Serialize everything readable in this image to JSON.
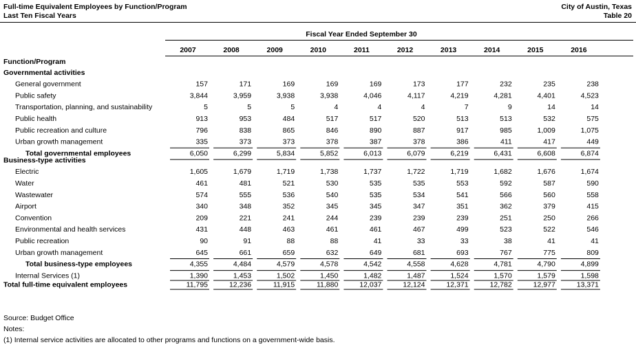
{
  "header": {
    "title": "Full-time Equivalent Employees by Function/Program",
    "subtitle": "Last Ten Fiscal Years",
    "entity": "City of Austin, Texas",
    "table_number": "Table 20"
  },
  "table": {
    "group_header": "Fiscal Year Ended September 30",
    "columns": [
      "2007",
      "2008",
      "2009",
      "2010",
      "2011",
      "2012",
      "2013",
      "2014",
      "2015",
      "2016"
    ],
    "row_header": "Function/Program",
    "sections": [
      {
        "title": "Governmental activities",
        "rows": [
          {
            "label": "General government",
            "values": [
              "157",
              "171",
              "169",
              "169",
              "169",
              "173",
              "177",
              "232",
              "235",
              "238"
            ]
          },
          {
            "label": "Public safety",
            "values": [
              "3,844",
              "3,959",
              "3,938",
              "3,938",
              "4,046",
              "4,117",
              "4,219",
              "4,281",
              "4,401",
              "4,523"
            ]
          },
          {
            "label": "Transportation, planning, and sustainability",
            "values": [
              "5",
              "5",
              "5",
              "4",
              "4",
              "4",
              "7",
              "9",
              "14",
              "14"
            ]
          },
          {
            "label": "Public health",
            "values": [
              "913",
              "953",
              "484",
              "517",
              "517",
              "520",
              "513",
              "513",
              "532",
              "575"
            ]
          },
          {
            "label": "Public recreation and culture",
            "values": [
              "796",
              "838",
              "865",
              "846",
              "890",
              "887",
              "917",
              "985",
              "1,009",
              "1,075"
            ]
          },
          {
            "label": "Urban growth management",
            "values": [
              "335",
              "373",
              "373",
              "378",
              "387",
              "378",
              "386",
              "411",
              "417",
              "449"
            ]
          }
        ],
        "total": {
          "label": "Total governmental employees",
          "values": [
            "6,050",
            "6,299",
            "5,834",
            "5,852",
            "6,013",
            "6,079",
            "6,219",
            "6,431",
            "6,608",
            "6,874"
          ]
        }
      },
      {
        "title": "Business-type activities",
        "rows": [
          {
            "label": "Electric",
            "values": [
              "1,605",
              "1,679",
              "1,719",
              "1,738",
              "1,737",
              "1,722",
              "1,719",
              "1,682",
              "1,676",
              "1,674"
            ]
          },
          {
            "label": "Water",
            "values": [
              "461",
              "481",
              "521",
              "530",
              "535",
              "535",
              "553",
              "592",
              "587",
              "590"
            ]
          },
          {
            "label": "Wastewater",
            "values": [
              "574",
              "555",
              "536",
              "540",
              "535",
              "534",
              "541",
              "566",
              "560",
              "558"
            ]
          },
          {
            "label": "Airport",
            "values": [
              "340",
              "348",
              "352",
              "345",
              "345",
              "347",
              "351",
              "362",
              "379",
              "415"
            ]
          },
          {
            "label": "Convention",
            "values": [
              "209",
              "221",
              "241",
              "244",
              "239",
              "239",
              "239",
              "251",
              "250",
              "266"
            ]
          },
          {
            "label": "Environmental and health services",
            "values": [
              "431",
              "448",
              "463",
              "461",
              "461",
              "467",
              "499",
              "523",
              "522",
              "546"
            ]
          },
          {
            "label": "Public recreation",
            "values": [
              "90",
              "91",
              "88",
              "88",
              "41",
              "33",
              "33",
              "38",
              "41",
              "41"
            ]
          },
          {
            "label": "Urban growth management",
            "values": [
              "645",
              "661",
              "659",
              "632",
              "649",
              "681",
              "693",
              "767",
              "775",
              "809"
            ]
          }
        ],
        "total": {
          "label": "Total business-type employees",
          "values": [
            "4,355",
            "4,484",
            "4,579",
            "4,578",
            "4,542",
            "4,558",
            "4,628",
            "4,781",
            "4,790",
            "4,899"
          ]
        }
      }
    ],
    "internal_services": {
      "label": "Internal Services (1)",
      "values": [
        "1,390",
        "1,453",
        "1,502",
        "1,450",
        "1,482",
        "1,487",
        "1,524",
        "1,570",
        "1,579",
        "1,598"
      ]
    },
    "grand_total": {
      "label": "Total full-time equivalent employees",
      "values": [
        "11,795",
        "12,236",
        "11,915",
        "11,880",
        "12,037",
        "12,124",
        "12,371",
        "12,782",
        "12,977",
        "13,371"
      ]
    }
  },
  "footer": {
    "source": "Source: Budget Office",
    "notes_label": "Notes:",
    "note": "(1) Internal service activities are allocated to other programs and functions on a government-wide basis."
  }
}
